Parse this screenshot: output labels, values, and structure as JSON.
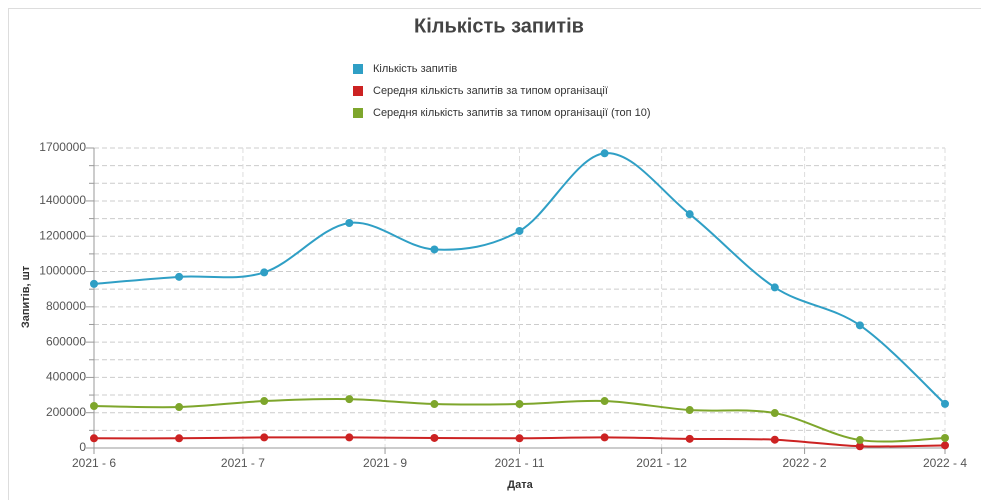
{
  "chart_data": {
    "type": "line",
    "title": "Кількість запитів",
    "x": [
      0,
      1,
      2,
      3,
      4,
      5,
      6,
      7,
      8,
      9,
      10
    ],
    "xlim": [
      0,
      10
    ],
    "xticks": [
      {
        "value": 0,
        "label": "2021 - 6"
      },
      {
        "value": 1.75,
        "label": "2021 - 7"
      },
      {
        "value": 3.42,
        "label": "2021 - 9"
      },
      {
        "value": 5,
        "label": "2021 - 11"
      },
      {
        "value": 6.67,
        "label": "2021 - 12"
      },
      {
        "value": 8.35,
        "label": "2022 - 2"
      },
      {
        "value": 10,
        "label": "2022 - 4"
      }
    ],
    "xlabel": "Дата",
    "ylabel": "Запитів, шт",
    "ylim": [
      0,
      1700000
    ],
    "yticks": [
      0,
      200000,
      400000,
      600000,
      800000,
      1000000,
      1200000,
      1400000,
      1700000
    ],
    "yminorticks": [
      100000,
      300000,
      500000,
      700000,
      900000,
      1100000,
      1300000,
      1500000,
      1600000
    ],
    "grid": true,
    "legend": "top",
    "series": [
      {
        "name": "Кількість запитів",
        "color": "#2f9fc5",
        "values": [
          930000,
          970000,
          995000,
          1275000,
          1125000,
          1230000,
          1670000,
          1325000,
          910000,
          695000,
          250000
        ]
      },
      {
        "name": "Середня кількість запитів за типом організації",
        "color": "#cc2222",
        "values": [
          55000,
          55000,
          60000,
          60000,
          57000,
          55000,
          60000,
          52000,
          47000,
          10000,
          15000
        ]
      },
      {
        "name": "Середня кількість запитів за типом організації (топ 10)",
        "color": "#7ea62c",
        "values": [
          238000,
          232000,
          266000,
          277000,
          249000,
          249000,
          266000,
          215000,
          198000,
          45000,
          57000
        ]
      }
    ]
  }
}
